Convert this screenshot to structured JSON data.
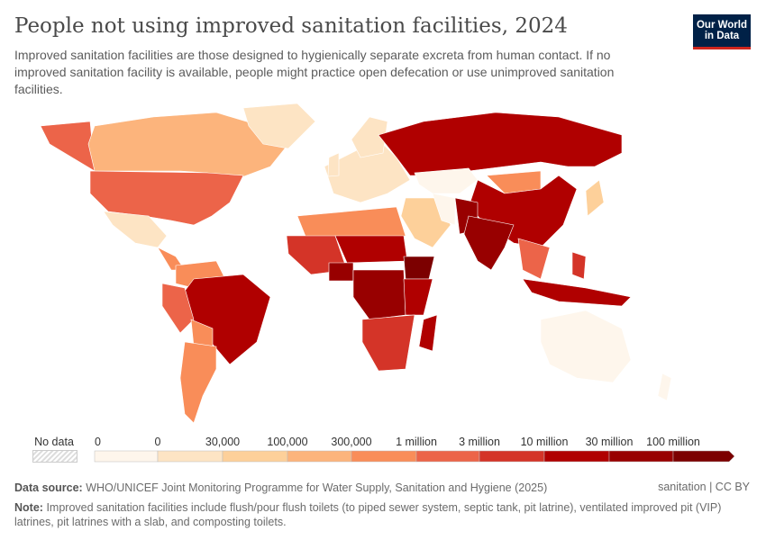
{
  "header": {
    "title": "People not using improved sanitation facilities, 2024",
    "subtitle": "Improved sanitation facilities are those designed to hygienically separate excreta from human contact. If no improved sanitation facility is available, people might practice open defecation or use unimproved sanitation facilities.",
    "logo_line1": "Our World",
    "logo_line2": "in Data"
  },
  "legend": {
    "no_data_label": "No data",
    "tick_labels": [
      "0",
      "0",
      "30,000",
      "100,000",
      "300,000",
      "1 million",
      "3 million",
      "10 million",
      "30 million",
      "100 million"
    ],
    "bin_colors": [
      "#fef6ec",
      "#fde4c4",
      "#fdd09a",
      "#fcb47c",
      "#f98d59",
      "#ec6449",
      "#d43428",
      "#b00000",
      "#980000",
      "#7c0000"
    ],
    "no_data_color": "#e8e8e8"
  },
  "map_regions": {
    "alaska": 5,
    "canada": 3,
    "usa": 5,
    "mexico": 1,
    "central_america": 4,
    "greenland": 1,
    "colombia_venezuela": 4,
    "peru": 5,
    "brazil": 7,
    "bolivia": 4,
    "southern_cone": 4,
    "europe": 1,
    "scandinavia": 1,
    "uk": 1,
    "russia": 7,
    "kazakhstan": 0,
    "mongolia": 4,
    "china": 7,
    "middle_east": 2,
    "iran": 0,
    "afghanistan_pakistan": 8,
    "india": 8,
    "southeast_asia": 5,
    "indonesia": 7,
    "philippines": 6,
    "japan": 2,
    "australia": 0,
    "new_zealand": 0,
    "north_africa": 4,
    "west_africa": 6,
    "sahel": 7,
    "nigeria": 8,
    "ethiopia": 9,
    "central_africa": 8,
    "east_africa": 7,
    "southern_africa": 6,
    "madagascar": 7
  },
  "footer": {
    "source_label": "Data source:",
    "source_text": "WHO/UNICEF Joint Monitoring Programme for Water Supply, Sanitation and Hygiene (2025)",
    "license": "sanitation | CC BY",
    "note_label": "Note:",
    "note_text": "Improved sanitation facilities include flush/pour flush toilets (to piped sewer system, septic tank, pit latrine), ventilated improved pit (VIP) latrines, pit latrines with a slab, and composting toilets."
  }
}
